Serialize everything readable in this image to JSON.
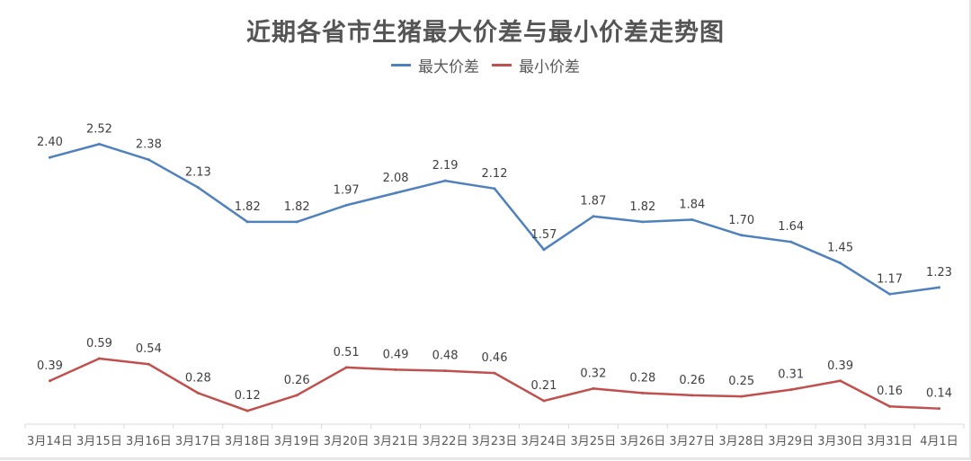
{
  "chart_data": {
    "type": "line",
    "title": "近期各省市生猪最大价差与最小价差走势图",
    "categories": [
      "3月14日",
      "3月15日",
      "3月16日",
      "3月17日",
      "3月18日",
      "3月19日",
      "3月20日",
      "3月21日",
      "3月22日",
      "3月23日",
      "3月24日",
      "3月25日",
      "3月26日",
      "3月27日",
      "3月28日",
      "3月29日",
      "3月30日",
      "3月31日",
      "4月1日"
    ],
    "series": [
      {
        "name": "最大价差",
        "color": "#4f81bd",
        "values": [
          2.4,
          2.52,
          2.38,
          2.13,
          1.82,
          1.82,
          1.97,
          2.08,
          2.19,
          2.12,
          1.57,
          1.87,
          1.82,
          1.84,
          1.7,
          1.64,
          1.45,
          1.17,
          1.23
        ]
      },
      {
        "name": "最小价差",
        "color": "#c0504d",
        "values": [
          0.39,
          0.59,
          0.54,
          0.28,
          0.12,
          0.26,
          0.51,
          0.49,
          0.48,
          0.46,
          0.21,
          0.32,
          0.28,
          0.26,
          0.25,
          0.31,
          0.39,
          0.16,
          0.14
        ]
      }
    ],
    "ylim": [
      0,
      3
    ],
    "grid": false,
    "legend": "top-center",
    "data_labels": true
  }
}
